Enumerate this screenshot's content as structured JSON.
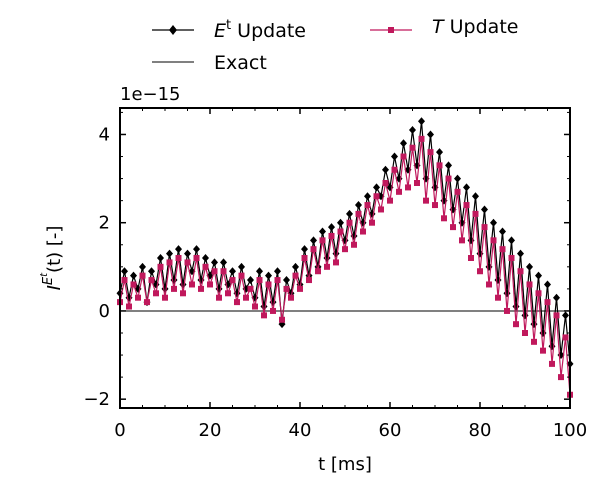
{
  "chart_data": {
    "type": "line",
    "title": "",
    "xlabel": "t [ms]",
    "ylabel_main": "I",
    "ylabel_sup": "E",
    "ylabel_supsup": "t",
    "ylabel_rest": "(t) [-]",
    "offset_text": "1e−15",
    "xlim": [
      0,
      100
    ],
    "ylim": [
      -2.2,
      4.6
    ],
    "xticks": [
      0,
      20,
      40,
      60,
      80,
      100
    ],
    "xtick_labels": [
      "0",
      "20",
      "40",
      "60",
      "80",
      "100"
    ],
    "yticks": [
      -2,
      0,
      2,
      4
    ],
    "ytick_labels": [
      "−2",
      "0",
      "2",
      "4"
    ],
    "grid": false,
    "legend_placement": "top, above plot",
    "series": [
      {
        "name_italic": "E",
        "name_sup": "t",
        "name_rest": " Update",
        "color": "#000000",
        "marker": "diamond",
        "x": [
          0,
          1,
          2,
          3,
          4,
          5,
          6,
          7,
          8,
          9,
          10,
          11,
          12,
          13,
          14,
          15,
          16,
          17,
          18,
          19,
          20,
          21,
          22,
          23,
          24,
          25,
          26,
          27,
          28,
          29,
          30,
          31,
          32,
          33,
          34,
          35,
          36,
          37,
          38,
          39,
          40,
          41,
          42,
          43,
          44,
          45,
          46,
          47,
          48,
          49,
          50,
          51,
          52,
          53,
          54,
          55,
          56,
          57,
          58,
          59,
          60,
          61,
          62,
          63,
          64,
          65,
          66,
          67,
          68,
          69,
          70,
          71,
          72,
          73,
          74,
          75,
          76,
          77,
          78,
          79,
          80,
          81,
          82,
          83,
          84,
          85,
          86,
          87,
          88,
          89,
          90,
          91,
          92,
          93,
          94,
          95,
          96,
          97,
          98,
          99,
          100
        ],
        "y": [
          0.4,
          0.9,
          0.3,
          0.8,
          0.5,
          1.0,
          0.2,
          0.9,
          0.6,
          1.2,
          0.5,
          1.3,
          0.7,
          1.4,
          0.6,
          1.3,
          0.9,
          1.4,
          0.7,
          1.2,
          0.8,
          1.1,
          0.5,
          1.1,
          0.6,
          0.9,
          0.4,
          1.0,
          0.5,
          0.7,
          0.3,
          0.9,
          0.1,
          0.8,
          0.2,
          0.9,
          -0.3,
          0.7,
          0.4,
          1.0,
          0.6,
          1.4,
          0.8,
          1.6,
          1.0,
          1.8,
          1.2,
          1.9,
          1.3,
          2.0,
          1.6,
          2.2,
          1.7,
          2.4,
          2.0,
          2.6,
          2.2,
          2.8,
          2.6,
          3.2,
          2.8,
          3.5,
          3.0,
          3.8,
          3.2,
          4.1,
          3.3,
          4.3,
          3.0,
          4.0,
          2.8,
          3.6,
          2.5,
          3.3,
          2.3,
          3.0,
          2.0,
          2.8,
          1.6,
          2.6,
          1.3,
          2.3,
          1.0,
          2.0,
          0.7,
          1.8,
          0.4,
          1.6,
          0.1,
          1.3,
          -0.1,
          1.0,
          -0.3,
          0.8,
          -0.5,
          0.6,
          -0.8,
          0.3,
          -1.0,
          -0.1,
          -1.2
        ]
      },
      {
        "name_italic": "T",
        "name_sup": "",
        "name_rest": " Update",
        "color": "#c0185c",
        "marker": "square",
        "x": [
          0,
          1,
          2,
          3,
          4,
          5,
          6,
          7,
          8,
          9,
          10,
          11,
          12,
          13,
          14,
          15,
          16,
          17,
          18,
          19,
          20,
          21,
          22,
          23,
          24,
          25,
          26,
          27,
          28,
          29,
          30,
          31,
          32,
          33,
          34,
          35,
          36,
          37,
          38,
          39,
          40,
          41,
          42,
          43,
          44,
          45,
          46,
          47,
          48,
          49,
          50,
          51,
          52,
          53,
          54,
          55,
          56,
          57,
          58,
          59,
          60,
          61,
          62,
          63,
          64,
          65,
          66,
          67,
          68,
          69,
          70,
          71,
          72,
          73,
          74,
          75,
          76,
          77,
          78,
          79,
          80,
          81,
          82,
          83,
          84,
          85,
          86,
          87,
          88,
          89,
          90,
          91,
          92,
          93,
          94,
          95,
          96,
          97,
          98,
          99,
          100
        ],
        "y": [
          0.2,
          0.7,
          0.1,
          0.6,
          0.3,
          0.8,
          0.2,
          0.7,
          0.4,
          1.0,
          0.3,
          1.1,
          0.5,
          1.2,
          0.4,
          1.1,
          0.6,
          1.2,
          0.5,
          1.0,
          0.6,
          0.9,
          0.3,
          0.9,
          0.4,
          0.7,
          0.2,
          0.8,
          0.3,
          0.5,
          0.1,
          0.7,
          -0.1,
          0.6,
          0.0,
          0.7,
          -0.2,
          0.5,
          0.3,
          0.8,
          0.5,
          1.2,
          0.7,
          1.4,
          0.9,
          1.6,
          1.0,
          1.7,
          1.1,
          1.8,
          1.4,
          2.0,
          1.5,
          2.2,
          1.8,
          2.4,
          2.0,
          2.6,
          2.3,
          2.9,
          2.5,
          3.2,
          2.7,
          3.5,
          2.8,
          3.7,
          2.9,
          3.9,
          2.5,
          3.6,
          2.4,
          3.3,
          2.1,
          3.0,
          1.9,
          2.7,
          1.6,
          2.4,
          1.2,
          2.2,
          0.9,
          1.9,
          0.6,
          1.6,
          0.3,
          1.4,
          0.0,
          1.2,
          -0.3,
          0.9,
          -0.5,
          0.6,
          -0.7,
          0.4,
          -0.9,
          0.2,
          -1.2,
          -0.1,
          -1.5,
          -0.6,
          -1.9
        ]
      },
      {
        "name": "Exact",
        "color": "#000000",
        "marker": "none",
        "x": [
          0,
          100
        ],
        "y": [
          0,
          0
        ]
      }
    ]
  }
}
